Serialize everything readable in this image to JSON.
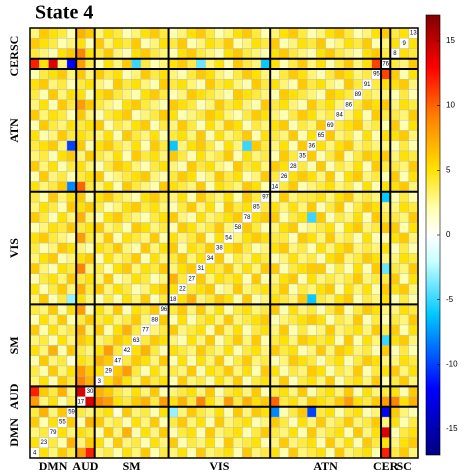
{
  "chart_data": {
    "type": "heatmap",
    "title": "State 4",
    "colormap": "jet-white",
    "networks": [
      {
        "name": "DMN",
        "size": 5
      },
      {
        "name": "AUD",
        "size": 2
      },
      {
        "name": "SM",
        "size": 8
      },
      {
        "name": "VIS",
        "size": 11
      },
      {
        "name": "ATN",
        "size": 12
      },
      {
        "name": "CER",
        "size": 1
      },
      {
        "name": "SC",
        "size": 3
      }
    ],
    "components": [
      "4",
      "23",
      "79",
      "55",
      "59",
      "17",
      "30",
      "3",
      "29",
      "47",
      "42",
      "63",
      "77",
      "88",
      "96",
      "18",
      "22",
      "27",
      "31",
      "34",
      "38",
      "54",
      "58",
      "78",
      "85",
      "97",
      "14",
      "26",
      "28",
      "35",
      "36",
      "65",
      "69",
      "84",
      "86",
      "89",
      "91",
      "95",
      "76",
      "8",
      "9",
      "13"
    ],
    "lower": [
      [],
      [
        5
      ],
      [
        3,
        4
      ],
      [
        6,
        2,
        5
      ],
      [
        4,
        7,
        3,
        6
      ],
      [
        8,
        3,
        5,
        2,
        4
      ],
      [
        12,
        6,
        4,
        7,
        3,
        14
      ],
      [
        3,
        5,
        2,
        6,
        4,
        9,
        7
      ],
      [
        4,
        2,
        6,
        3,
        5,
        8,
        6,
        5
      ],
      [
        2,
        6,
        3,
        4,
        1,
        5,
        4,
        7,
        6
      ],
      [
        5,
        3,
        7,
        2,
        6,
        4,
        3,
        5,
        8,
        4
      ],
      [
        3,
        4,
        2,
        5,
        3,
        6,
        5,
        3,
        4,
        6,
        5
      ],
      [
        6,
        2,
        5,
        3,
        4,
        7,
        3,
        6,
        2,
        5,
        7,
        4
      ],
      [
        2,
        5,
        3,
        6,
        2,
        4,
        6,
        4,
        5,
        3,
        4,
        6,
        3
      ],
      [
        4,
        3,
        6,
        2,
        5,
        8,
        2,
        5,
        3,
        6,
        2,
        5,
        4,
        6
      ],
      [
        3,
        6,
        2,
        4,
        -3,
        5,
        3,
        2,
        4,
        2,
        5,
        3,
        6,
        2,
        4
      ],
      [
        5,
        2,
        4,
        6,
        3,
        7,
        4,
        6,
        3,
        5,
        4,
        2,
        3,
        5,
        6,
        5
      ],
      [
        2,
        4,
        5,
        3,
        6,
        4,
        5,
        3,
        6,
        2,
        3,
        5,
        4,
        2,
        3,
        7,
        4
      ],
      [
        6,
        3,
        2,
        5,
        4,
        9,
        3,
        4,
        2,
        5,
        6,
        3,
        5,
        4,
        6,
        3,
        5,
        6
      ],
      [
        3,
        5,
        6,
        2,
        3,
        5,
        6,
        2,
        5,
        3,
        4,
        6,
        2,
        5,
        3,
        4,
        6,
        3,
        5
      ],
      [
        4,
        2,
        3,
        6,
        5,
        3,
        2,
        5,
        4,
        6,
        3,
        2,
        6,
        3,
        5,
        6,
        2,
        5,
        4,
        6
      ],
      [
        5,
        6,
        4,
        3,
        2,
        8,
        4,
        3,
        6,
        2,
        5,
        4,
        3,
        6,
        2,
        5,
        3,
        4,
        6,
        2,
        5
      ],
      [
        2,
        3,
        5,
        4,
        6,
        4,
        5,
        6,
        3,
        4,
        2,
        6,
        5,
        3,
        4,
        2,
        6,
        5,
        3,
        4,
        6,
        3
      ],
      [
        6,
        4,
        2,
        5,
        3,
        7,
        3,
        2,
        5,
        6,
        4,
        3,
        2,
        4,
        5,
        6,
        3,
        2,
        5,
        3,
        4,
        5,
        6
      ],
      [
        3,
        5,
        4,
        2,
        6,
        5,
        6,
        4,
        2,
        3,
        5,
        6,
        4,
        5,
        3,
        2,
        4,
        6,
        3,
        5,
        2,
        6,
        4,
        5
      ],
      [
        4,
        2,
        6,
        3,
        5,
        6,
        2,
        5,
        6,
        4,
        3,
        2,
        5,
        6,
        4,
        3,
        5,
        2,
        6,
        4,
        3,
        5,
        2,
        6,
        4
      ],
      [
        5,
        3,
        4,
        6,
        -8,
        10,
        4,
        3,
        5,
        2,
        6,
        4,
        3,
        2,
        6,
        5,
        4,
        3,
        6,
        2,
        5,
        4,
        3,
        6,
        5,
        2
      ],
      [
        2,
        6,
        3,
        4,
        2,
        4,
        5,
        6,
        2,
        3,
        4,
        5,
        6,
        3,
        2,
        4,
        6,
        5,
        2,
        3,
        6,
        4,
        5,
        2,
        3,
        6,
        4
      ],
      [
        6,
        3,
        5,
        2,
        4,
        5,
        3,
        2,
        4,
        6,
        5,
        3,
        2,
        4,
        5,
        3,
        2,
        6,
        4,
        5,
        3,
        2,
        6,
        4,
        5,
        3,
        6,
        5
      ],
      [
        3,
        4,
        2,
        5,
        6,
        3,
        6,
        4,
        3,
        5,
        2,
        6,
        4,
        5,
        3,
        6,
        4,
        2,
        5,
        3,
        4,
        6,
        2,
        5,
        3,
        4,
        2,
        6,
        4
      ],
      [
        4,
        5,
        6,
        3,
        -10,
        6,
        2,
        5,
        6,
        4,
        3,
        5,
        2,
        6,
        4,
        -6,
        3,
        5,
        6,
        4,
        2,
        5,
        3,
        -5,
        6,
        4,
        3,
        5,
        2,
        6
      ],
      [
        5,
        2,
        3,
        6,
        4,
        5,
        4,
        3,
        5,
        2,
        6,
        4,
        3,
        5,
        2,
        4,
        5,
        3,
        6,
        2,
        5,
        3,
        4,
        6,
        2,
        5,
        4,
        3,
        6,
        2,
        5
      ],
      [
        2,
        6,
        4,
        3,
        5,
        4,
        5,
        6,
        2,
        4,
        3,
        5,
        6,
        2,
        4,
        3,
        6,
        4,
        2,
        5,
        3,
        6,
        5,
        2,
        4,
        3,
        5,
        6,
        2,
        4,
        3,
        6
      ],
      [
        6,
        3,
        5,
        4,
        2,
        6,
        3,
        2,
        4,
        5,
        6,
        2,
        3,
        4,
        6,
        5,
        2,
        3,
        4,
        6,
        5,
        3,
        2,
        4,
        6,
        5,
        3,
        2,
        4,
        6,
        5,
        3,
        4
      ],
      [
        3,
        5,
        2,
        6,
        4,
        8,
        6,
        4,
        3,
        2,
        5,
        6,
        4,
        3,
        2,
        6,
        5,
        4,
        2,
        3,
        6,
        4,
        5,
        3,
        2,
        6,
        4,
        5,
        3,
        2,
        6,
        4,
        5,
        3
      ],
      [
        4,
        2,
        6,
        3,
        5,
        5,
        2,
        5,
        6,
        4,
        3,
        2,
        5,
        6,
        4,
        2,
        3,
        6,
        5,
        4,
        3,
        2,
        6,
        5,
        4,
        3,
        2,
        6,
        5,
        4,
        3,
        2,
        6,
        5,
        4
      ],
      [
        5,
        6,
        3,
        4,
        2,
        4,
        5,
        3,
        2,
        6,
        4,
        5,
        3,
        2,
        6,
        4,
        5,
        3,
        2,
        6,
        4,
        5,
        3,
        2,
        6,
        4,
        5,
        3,
        2,
        6,
        4,
        5,
        3,
        2,
        6,
        4
      ],
      [
        2,
        4,
        5,
        6,
        3,
        6,
        3,
        6,
        4,
        5,
        2,
        3,
        6,
        4,
        5,
        3,
        2,
        4,
        6,
        5,
        3,
        2,
        4,
        6,
        5,
        3,
        2,
        4,
        6,
        5,
        3,
        2,
        4,
        6,
        5,
        3,
        4
      ],
      [
        12,
        5,
        14,
        3,
        -12,
        8,
        4,
        2,
        5,
        3,
        6,
        -5,
        4,
        2,
        3,
        5,
        6,
        4,
        -4,
        3,
        5,
        2,
        6,
        4,
        3,
        -6,
        5,
        2,
        4,
        6,
        3,
        5,
        2,
        4,
        6,
        3,
        5,
        11
      ],
      [
        4,
        3,
        2,
        5,
        6,
        9,
        5,
        4,
        6,
        3,
        2,
        5,
        6,
        4,
        3,
        2,
        5,
        6,
        4,
        3,
        2,
        5,
        6,
        4,
        3,
        2,
        5,
        6,
        4,
        3,
        2,
        5,
        6,
        4,
        3,
        2,
        5,
        6,
        4
      ],
      [
        6,
        5,
        4,
        2,
        3,
        5,
        2,
        6,
        3,
        5,
        4,
        6,
        2,
        3,
        5,
        4,
        6,
        2,
        3,
        5,
        4,
        6,
        2,
        3,
        5,
        4,
        6,
        2,
        3,
        5,
        4,
        6,
        2,
        3,
        5,
        4,
        6,
        2,
        3,
        5
      ],
      [
        3,
        6,
        5,
        4,
        2,
        7,
        6,
        3,
        5,
        4,
        2,
        3,
        5,
        6,
        4,
        2,
        3,
        5,
        6,
        4,
        2,
        3,
        5,
        6,
        4,
        2,
        3,
        5,
        6,
        4,
        2,
        3,
        5,
        6,
        4,
        2,
        3,
        5,
        6,
        4,
        5
      ]
    ],
    "clim": [
      -17,
      17
    ],
    "cticks": [
      -15,
      -10,
      -5,
      0,
      5,
      10,
      15
    ]
  }
}
